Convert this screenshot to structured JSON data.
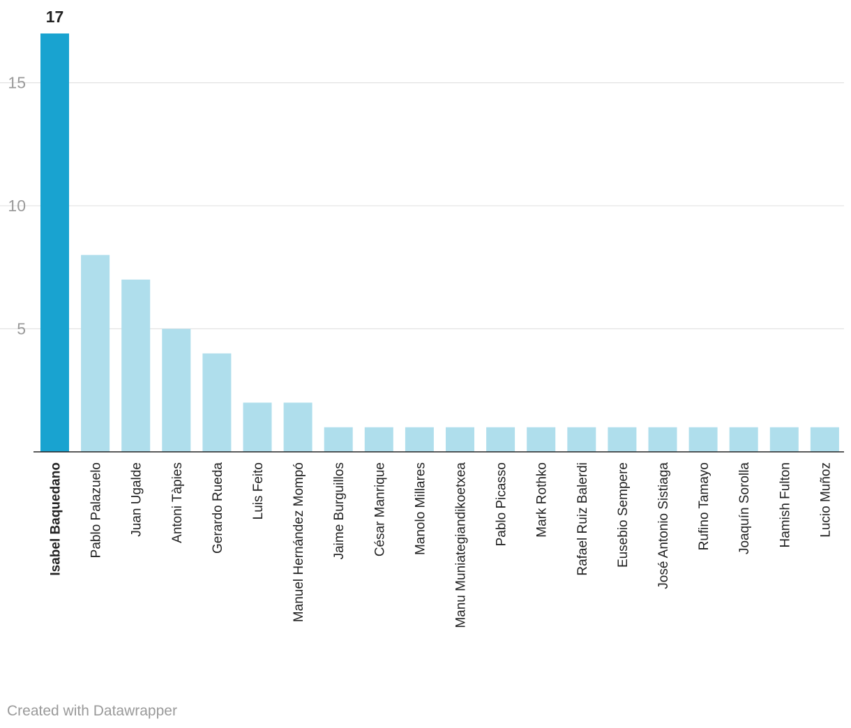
{
  "chart_data": {
    "type": "bar",
    "categories": [
      "Isabel Baquedano",
      "Pablo Palazuelo",
      "Juan Ugalde",
      "Antoni Tàpies",
      "Gerardo Rueda",
      "Luis Feito",
      "Manuel Hernández Mompó",
      "Jaime Burguillos",
      "César Manrique",
      "Manolo Millares",
      "Manu Muniategiandikoetxea",
      "Pablo Picasso",
      "Mark Rothko",
      "Rafael Ruiz Balerdi",
      "Eusebio Sempere",
      "José Antonio Sistiaga",
      "Rufino Tamayo",
      "Joaquín Sorolla",
      "Hamish Fulton",
      "Lucio Muñoz"
    ],
    "values": [
      17,
      8,
      7,
      5,
      4,
      2,
      2,
      1,
      1,
      1,
      1,
      1,
      1,
      1,
      1,
      1,
      1,
      1,
      1,
      1
    ],
    "highlight_index": 0,
    "highlight_label": "17",
    "yticks": [
      "5",
      "10",
      "15"
    ],
    "ylim": [
      0,
      17
    ],
    "grid": true,
    "colors": {
      "highlight": "#19a3d0",
      "bar": "#afdeec"
    }
  },
  "footer": {
    "credit": "Created with Datawrapper"
  }
}
